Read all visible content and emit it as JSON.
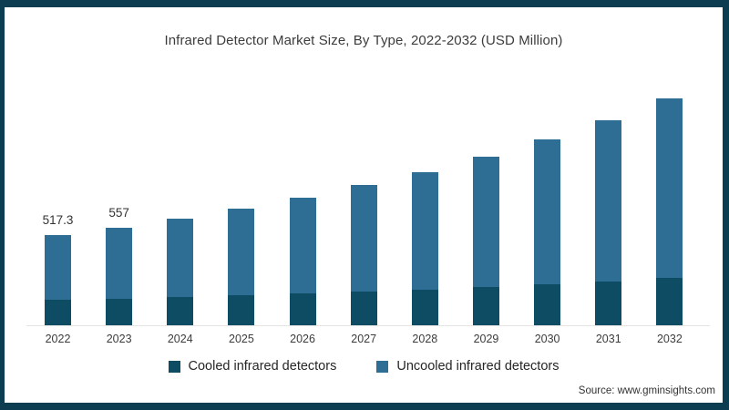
{
  "title": "Infrared Detector Market Size, By Type, 2022-2032 (USD Million)",
  "source": "Source: www.gminsights.com",
  "colors": {
    "frame_border": "#0d3d51",
    "cooled": "#0e4c64",
    "uncooled": "#2f6e94",
    "axis_line": "#e4e4e4",
    "text": "#3c3c3c"
  },
  "legend": {
    "items": [
      {
        "label": "Cooled infrared detectors",
        "color": "#0e4c64"
      },
      {
        "label": "Uncooled infrared detectors",
        "color": "#2f6e94"
      }
    ]
  },
  "chart_data": {
    "type": "bar",
    "stacked": true,
    "title": "Infrared Detector Market Size, By Type, 2022-2032 (USD Million)",
    "value_unit": "USD Million",
    "categories": [
      "2022",
      "2023",
      "2024",
      "2025",
      "2026",
      "2027",
      "2028",
      "2029",
      "2030",
      "2031",
      "2032"
    ],
    "series": [
      {
        "name": "Cooled infrared detectors",
        "color": "#0e4c64",
        "values": [
          144,
          152,
          161,
          171,
          181,
          192,
          204,
          218,
          234,
          252,
          273
        ]
      },
      {
        "name": "Uncooled infrared detectors",
        "color": "#2f6e94",
        "values": [
          373.3,
          405,
          449,
          494,
          547,
          608,
          671,
          742,
          826,
          918,
          1022
        ]
      }
    ],
    "totals": [
      517.3,
      557,
      610,
      665,
      728,
      800,
      875,
      960,
      1060,
      1170,
      1295
    ],
    "data_labels": [
      "517.3",
      "557",
      "",
      "",
      "",
      "",
      "",
      "",
      "",
      "",
      ""
    ],
    "xlabel": "",
    "ylabel": "",
    "ylim": [
      0,
      1350
    ],
    "grid": false,
    "y_axis_visible": false,
    "legend_position": "bottom"
  }
}
